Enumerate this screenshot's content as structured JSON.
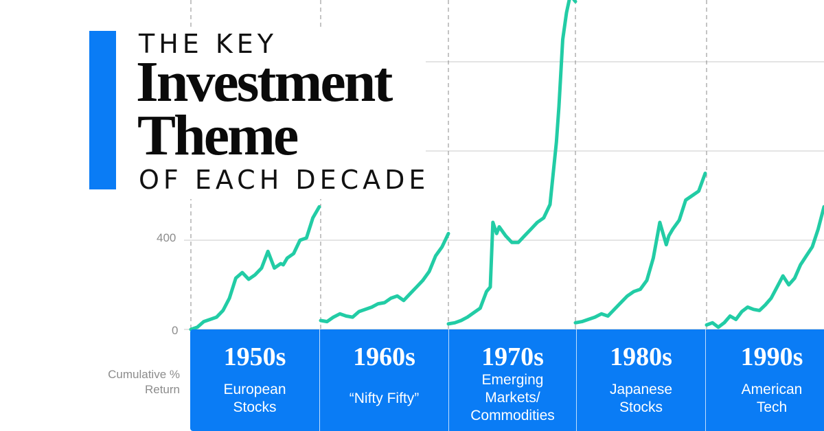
{
  "title": {
    "line1": "THE KEY",
    "line2": "Investment",
    "line3": "Theme",
    "line4": "OF EACH DECADE"
  },
  "colors": {
    "accent": "#0A7CF5",
    "line": "#22CCA5",
    "grid": "#d3d3d3",
    "axis_text": "#8c8c8c"
  },
  "chart_data": {
    "type": "line",
    "ylabel": "Cumulative % Return",
    "y_ticks": [
      "0",
      "400"
    ],
    "decades": [
      {
        "decade": "1950s",
        "theme": "European Stocks",
        "x": [
          0,
          0.05,
          0.1,
          0.15,
          0.2,
          0.25,
          0.3,
          0.35,
          0.4,
          0.45,
          0.5,
          0.55,
          0.6,
          0.65,
          0.7,
          0.72,
          0.75,
          0.8,
          0.85,
          0.9,
          0.95,
          1
        ],
        "y": [
          0,
          10,
          35,
          45,
          55,
          85,
          140,
          230,
          255,
          225,
          245,
          275,
          350,
          275,
          295,
          290,
          320,
          340,
          400,
          410,
          500,
          550
        ]
      },
      {
        "decade": "1960s",
        "theme": "“Nifty Fifty”",
        "x": [
          0,
          0.05,
          0.1,
          0.15,
          0.2,
          0.25,
          0.3,
          0.35,
          0.4,
          0.45,
          0.5,
          0.55,
          0.6,
          0.65,
          0.7,
          0.75,
          0.8,
          0.85,
          0.9,
          0.95,
          1
        ],
        "y": [
          40,
          35,
          55,
          70,
          60,
          55,
          80,
          90,
          100,
          115,
          120,
          140,
          150,
          130,
          160,
          190,
          220,
          260,
          330,
          370,
          430
        ]
      },
      {
        "decade": "1970s",
        "theme": "Emerging Markets/ Commodities",
        "x": [
          0,
          0.05,
          0.1,
          0.15,
          0.2,
          0.25,
          0.3,
          0.33,
          0.35,
          0.38,
          0.4,
          0.45,
          0.5,
          0.55,
          0.6,
          0.65,
          0.7,
          0.75,
          0.8,
          0.85,
          0.87,
          0.9,
          0.93,
          0.96,
          1
        ],
        "y": [
          25,
          30,
          40,
          55,
          75,
          95,
          170,
          190,
          480,
          430,
          460,
          420,
          390,
          390,
          420,
          450,
          480,
          500,
          560,
          840,
          1000,
          1300,
          1420,
          1500,
          1470
        ]
      },
      {
        "decade": "1980s",
        "theme": "Japanese Stocks",
        "x": [
          0,
          0.05,
          0.1,
          0.15,
          0.2,
          0.25,
          0.3,
          0.35,
          0.4,
          0.45,
          0.5,
          0.55,
          0.6,
          0.65,
          0.7,
          0.72,
          0.75,
          0.8,
          0.85,
          0.9,
          0.95,
          1
        ],
        "y": [
          30,
          35,
          45,
          55,
          70,
          60,
          90,
          120,
          150,
          170,
          180,
          220,
          320,
          480,
          380,
          420,
          450,
          490,
          580,
          600,
          620,
          700
        ]
      },
      {
        "decade": "1990s",
        "theme": "American Tech",
        "x": [
          0,
          0.05,
          0.1,
          0.15,
          0.2,
          0.25,
          0.3,
          0.35,
          0.4,
          0.45,
          0.5,
          0.55,
          0.6,
          0.65,
          0.7,
          0.75,
          0.8,
          0.85,
          0.9,
          0.95,
          1
        ],
        "y": [
          20,
          30,
          10,
          30,
          60,
          45,
          80,
          100,
          90,
          85,
          110,
          140,
          190,
          240,
          200,
          230,
          290,
          330,
          370,
          450,
          550
        ]
      }
    ]
  }
}
